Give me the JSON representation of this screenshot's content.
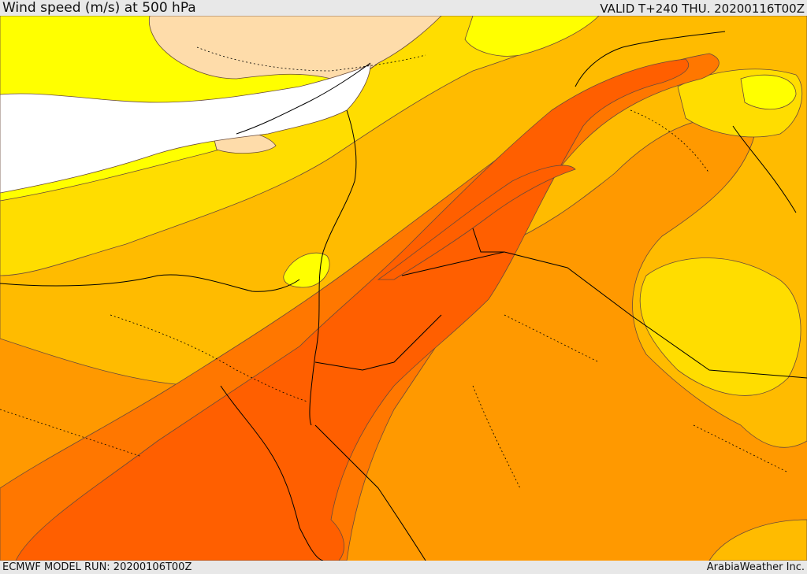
{
  "header": {
    "title": "Wind speed (m/s) at 500 hPa",
    "valid": "VALID T+240 THU. 20200116T00Z"
  },
  "footer": {
    "model_run": "ECMWF MODEL RUN: 20200106T00Z",
    "credit": "ArabiaWeather Inc."
  },
  "colors": {
    "band_lt10": "#ffffff",
    "band_10_15": "#fedcaa",
    "band_15_20": "#ffff00",
    "band_20_25": "#ffdd00",
    "band_25_30": "#ffbb00",
    "band_30_35": "#ff9900",
    "band_35_40": "#ff7700",
    "band_40_45": "#ff5f00",
    "coastline": "#000000",
    "contour": "#6a4a3a"
  }
}
